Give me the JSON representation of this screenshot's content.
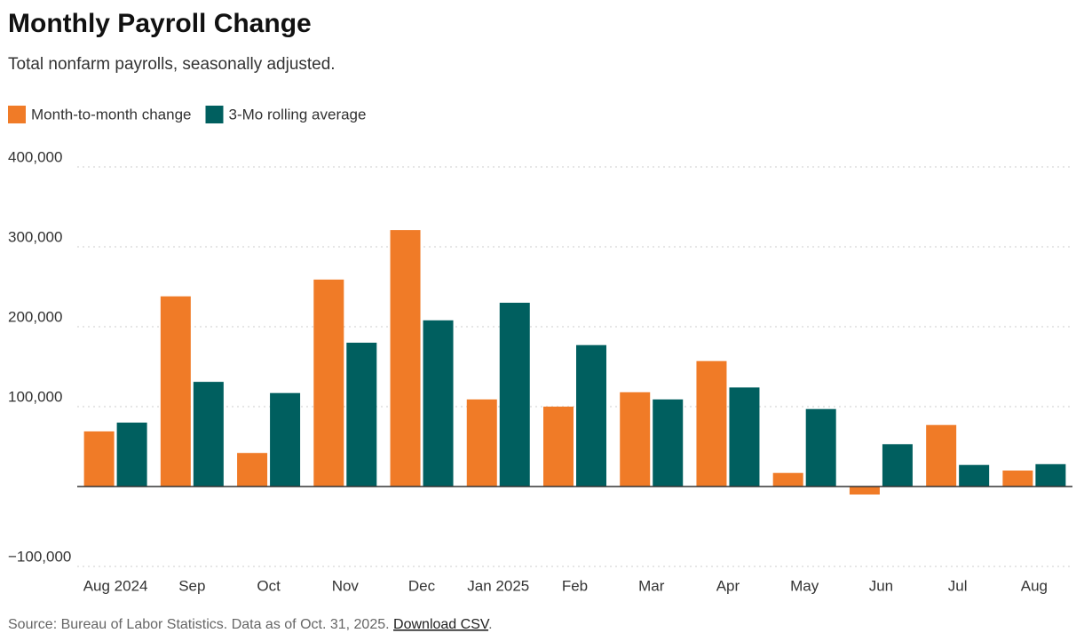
{
  "chart_data": {
    "type": "bar",
    "title": "Monthly Payroll Change",
    "subtitle": "Total nonfarm payrolls, seasonally adjusted.",
    "categories": [
      "Aug 2024",
      "Sep",
      "Oct",
      "Nov",
      "Dec",
      "Jan 2025",
      "Feb",
      "Mar",
      "Apr",
      "May",
      "Jun",
      "Jul",
      "Aug"
    ],
    "series": [
      {
        "name": "Month-to-month change",
        "color": "#f07b27",
        "values": [
          69000,
          238000,
          42000,
          259000,
          321000,
          109000,
          100000,
          118000,
          157000,
          17000,
          -10000,
          77000,
          20000
        ]
      },
      {
        "name": "3-Mo rolling average",
        "color": "#005f5f",
        "values": [
          80000,
          131000,
          117000,
          180000,
          208000,
          230000,
          177000,
          109000,
          124000,
          97000,
          53000,
          27000,
          28000
        ]
      }
    ],
    "ylim": [
      -100000,
      400000
    ],
    "yticks": [
      {
        "value": -100000,
        "label": "−100,000"
      },
      {
        "value": 100000,
        "label": "100,000"
      },
      {
        "value": 200000,
        "label": "200,000"
      },
      {
        "value": 300000,
        "label": "300,000"
      },
      {
        "value": 400000,
        "label": "400,000"
      }
    ],
    "grid": true,
    "legend": "top-left",
    "source": "Source: Bureau of Labor Statistics. Data as of Oct. 31, 2025.",
    "source_link": "Download CSV",
    "source_end": "."
  }
}
